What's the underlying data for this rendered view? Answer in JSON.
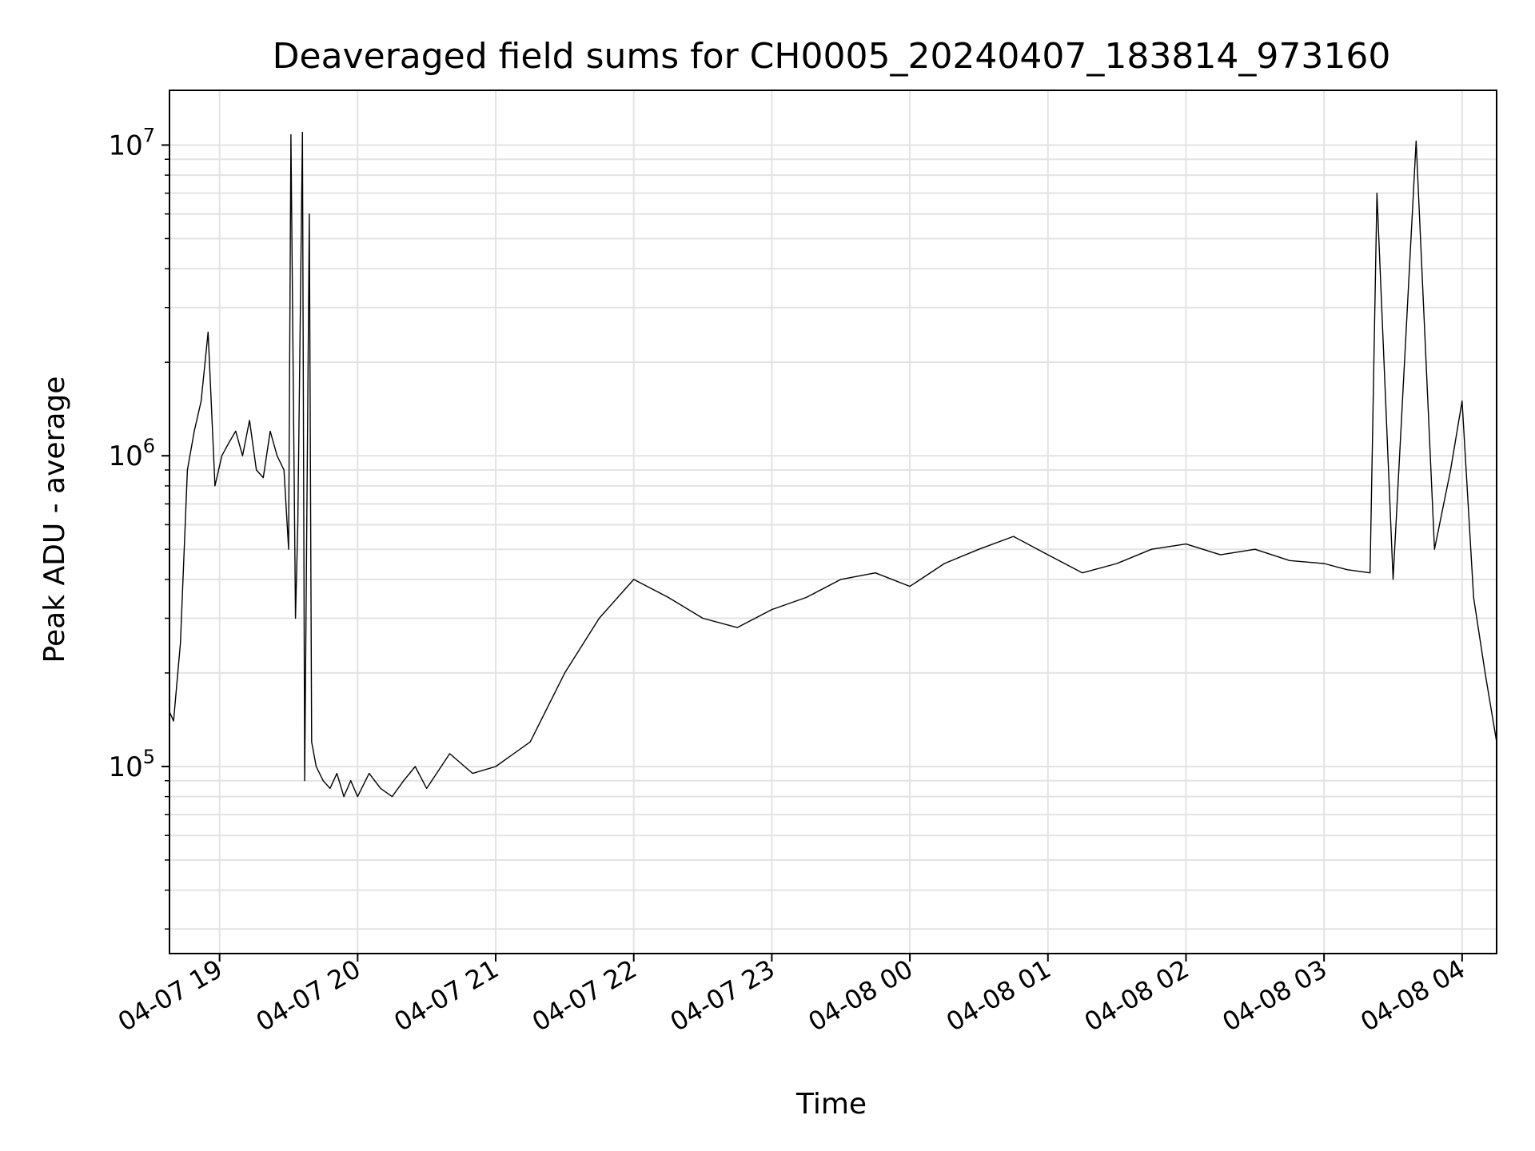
{
  "chart_data": {
    "type": "line",
    "title": "Deaveraged field sums for CH0005_20240407_183814_973160",
    "xlabel": "Time",
    "ylabel": "Peak ADU - average",
    "x_start": "2024-04-07T18:38:14",
    "x_end": "2024-04-08T04:15:00",
    "xlim": [
      "2024-04-07T18:38:14",
      "2024-04-08T04:15:00"
    ],
    "ylog": true,
    "ylim": [
      25000,
      15000000
    ],
    "grid": true,
    "line_color": "#000000",
    "x_ticks": [
      {
        "t": "2024-04-07T19:00:00",
        "label": "04-07 19"
      },
      {
        "t": "2024-04-07T20:00:00",
        "label": "04-07 20"
      },
      {
        "t": "2024-04-07T21:00:00",
        "label": "04-07 21"
      },
      {
        "t": "2024-04-07T22:00:00",
        "label": "04-07 22"
      },
      {
        "t": "2024-04-07T23:00:00",
        "label": "04-07 23"
      },
      {
        "t": "2024-04-08T00:00:00",
        "label": "04-08 00"
      },
      {
        "t": "2024-04-08T01:00:00",
        "label": "04-08 01"
      },
      {
        "t": "2024-04-08T02:00:00",
        "label": "04-08 02"
      },
      {
        "t": "2024-04-08T03:00:00",
        "label": "04-08 03"
      },
      {
        "t": "2024-04-08T04:00:00",
        "label": "04-08 04"
      }
    ],
    "y_ticks": [
      {
        "value": 100000,
        "label": "10",
        "exp": "5"
      },
      {
        "value": 1000000,
        "label": "10",
        "exp": "6"
      },
      {
        "value": 10000000,
        "label": "10",
        "exp": "7"
      }
    ],
    "series": [
      {
        "x": [
          "2024-04-07T18:38:14",
          "2024-04-07T18:40:00",
          "2024-04-07T18:43:00",
          "2024-04-07T18:46:00",
          "2024-04-07T18:49:00",
          "2024-04-07T18:52:00",
          "2024-04-07T18:55:00",
          "2024-04-07T18:58:00",
          "2024-04-07T19:01:00",
          "2024-04-07T19:04:00",
          "2024-04-07T19:07:00",
          "2024-04-07T19:10:00",
          "2024-04-07T19:13:00",
          "2024-04-07T19:16:00",
          "2024-04-07T19:19:00",
          "2024-04-07T19:22:00",
          "2024-04-07T19:25:00",
          "2024-04-07T19:28:00",
          "2024-04-07T19:30:00",
          "2024-04-07T19:31:00",
          "2024-04-07T19:33:00",
          "2024-04-07T19:34:00",
          "2024-04-07T19:36:00",
          "2024-04-07T19:37:00",
          "2024-04-07T19:39:00",
          "2024-04-07T19:40:00",
          "2024-04-07T19:42:00",
          "2024-04-07T19:45:00",
          "2024-04-07T19:48:00",
          "2024-04-07T19:51:00",
          "2024-04-07T19:54:00",
          "2024-04-07T19:57:00",
          "2024-04-07T20:00:00",
          "2024-04-07T20:05:00",
          "2024-04-07T20:10:00",
          "2024-04-07T20:15:00",
          "2024-04-07T20:20:00",
          "2024-04-07T20:25:00",
          "2024-04-07T20:30:00",
          "2024-04-07T20:40:00",
          "2024-04-07T20:50:00",
          "2024-04-07T21:00:00",
          "2024-04-07T21:15:00",
          "2024-04-07T21:30:00",
          "2024-04-07T21:45:00",
          "2024-04-07T22:00:00",
          "2024-04-07T22:15:00",
          "2024-04-07T22:30:00",
          "2024-04-07T22:45:00",
          "2024-04-07T23:00:00",
          "2024-04-07T23:15:00",
          "2024-04-07T23:30:00",
          "2024-04-07T23:45:00",
          "2024-04-08T00:00:00",
          "2024-04-08T00:15:00",
          "2024-04-08T00:30:00",
          "2024-04-08T00:45:00",
          "2024-04-08T01:00:00",
          "2024-04-08T01:15:00",
          "2024-04-08T01:30:00",
          "2024-04-08T01:45:00",
          "2024-04-08T02:00:00",
          "2024-04-08T02:15:00",
          "2024-04-08T02:30:00",
          "2024-04-08T02:45:00",
          "2024-04-08T03:00:00",
          "2024-04-08T03:10:00",
          "2024-04-08T03:20:00",
          "2024-04-08T03:23:00",
          "2024-04-08T03:30:00",
          "2024-04-08T03:40:00",
          "2024-04-08T03:48:00",
          "2024-04-08T03:55:00",
          "2024-04-08T04:00:00",
          "2024-04-08T04:05:00",
          "2024-04-08T04:10:00",
          "2024-04-08T04:15:00"
        ],
        "y": [
          150000,
          140000,
          250000,
          900000,
          1200000,
          1500000,
          2500000,
          800000,
          1000000,
          1100000,
          1200000,
          1000000,
          1300000,
          900000,
          850000,
          1200000,
          1000000,
          900000,
          500000,
          10800000,
          300000,
          600000,
          11000000,
          90000,
          6000000,
          120000,
          100000,
          90000,
          85000,
          95000,
          80000,
          90000,
          80000,
          95000,
          85000,
          80000,
          90000,
          100000,
          85000,
          110000,
          95000,
          100000,
          120000,
          200000,
          300000,
          400000,
          350000,
          300000,
          280000,
          320000,
          350000,
          400000,
          420000,
          380000,
          450000,
          500000,
          550000,
          480000,
          420000,
          450000,
          500000,
          520000,
          480000,
          500000,
          460000,
          450000,
          430000,
          420000,
          7000000,
          400000,
          10300000,
          500000,
          900000,
          1500000,
          350000,
          200000,
          120000
        ]
      }
    ]
  }
}
